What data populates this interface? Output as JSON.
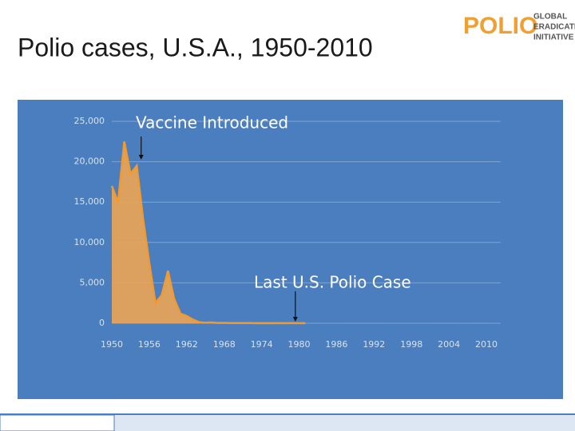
{
  "slide": {
    "title": "Polio cases, U.S.A., 1950-2010"
  },
  "logo": {
    "mark": "POLIO",
    "lines": [
      "GLOBAL",
      "ERADICATION",
      "INITIATIVE"
    ]
  },
  "chart_data": {
    "type": "area",
    "x": [
      1950,
      1951,
      1952,
      1953,
      1954,
      1955,
      1956,
      1957,
      1958,
      1959,
      1960,
      1961,
      1962,
      1963,
      1964,
      1965,
      1966,
      1967,
      1968,
      1969,
      1970,
      1971,
      1972,
      1973,
      1974,
      1975,
      1976,
      1977,
      1978,
      1979,
      1980,
      1981
    ],
    "values": [
      17000,
      15000,
      22500,
      18500,
      19500,
      13000,
      7500,
      2500,
      3500,
      6500,
      3000,
      1200,
      900,
      450,
      120,
      70,
      100,
      40,
      50,
      20,
      30,
      20,
      30,
      10,
      10,
      10,
      10,
      20,
      10,
      30,
      10,
      10
    ],
    "color": "#e9a457",
    "xlim": [
      1950,
      2012.3
    ],
    "xticks": [
      1950,
      1956,
      1962,
      1968,
      1974,
      1980,
      1986,
      1992,
      1998,
      2004,
      2010
    ],
    "ylim": [
      0,
      25000
    ],
    "yticks": [
      0,
      {
        "value": 5000,
        "label": "5,000"
      },
      {
        "value": 10000,
        "label": "10,000"
      },
      {
        "value": 15000,
        "label": "15,000"
      },
      {
        "value": 20000,
        "label": "20,000"
      },
      {
        "value": 25000,
        "label": "25,000"
      }
    ],
    "grid": true,
    "annotations": [
      {
        "text": "Vaccine Introduced",
        "x": 1954.7
      },
      {
        "text": "Last U.S. Polio Case",
        "x": 1979.4
      }
    ]
  }
}
